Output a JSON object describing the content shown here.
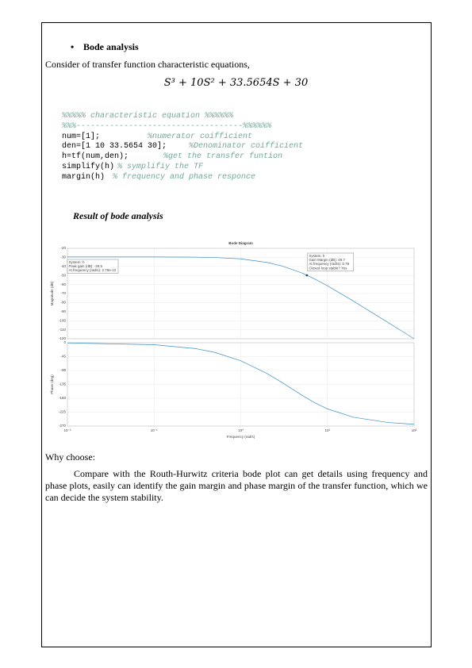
{
  "bullet_heading": "Bode analysis",
  "intro": "Consider of transfer function characteristic equations,",
  "equation": "S³ + 10S² + 33.5654S + 30",
  "code": [
    {
      "comment": "%%%%% characteristic equation %%%%%%"
    },
    {
      "comment": "%%%-----------------------------------%%%%%%"
    },
    {
      "code": "num=[1];",
      "comment": "%numerator coifficient"
    },
    {
      "code": "den=[1 10 33.5654 30];",
      "comment": "%Denominator coifficient"
    },
    {
      "code": "h=tf(num,den);",
      "comment": "%get the transfer funtion"
    },
    {
      "code": "simplify(h)",
      "comment": "% symplifiy the TF"
    },
    {
      "code": "margin(h)",
      "comment": "% frequency and phase responce"
    }
  ],
  "result_heading": "Result of bode analysis",
  "figure": {
    "type": "line",
    "title": "Bode Diagram",
    "x_label": "Frequency  (rad/s)",
    "log_x": true,
    "grid": true,
    "color": "#3c8fc6",
    "x": [
      0.01,
      0.1,
      0.3,
      0.5,
      1,
      2,
      3,
      5,
      7,
      10,
      20,
      50,
      100
    ],
    "xlim": [
      0.01,
      100
    ],
    "xticks": [
      {
        "value": 0.01,
        "label": "10⁻²"
      },
      {
        "value": 0.1,
        "label": "10⁻¹"
      },
      {
        "value": 1,
        "label": "10⁰"
      },
      {
        "value": 10,
        "label": "10¹"
      },
      {
        "value": 100,
        "label": "10²"
      }
    ],
    "magnitude": {
      "y_label": "Magnitude (dB)",
      "values": [
        -29.54,
        -29.57,
        -29.77,
        -30.14,
        -31.65,
        -35.56,
        -39.56,
        -47.01,
        -53.49,
        -61.41,
        -78.42,
        -101.99,
        -120.01
      ],
      "ylim": [
        -120,
        -20
      ],
      "yticks": [
        -20,
        -30,
        -40,
        -50,
        -60,
        -70,
        -80,
        -90,
        -100,
        -110,
        -120
      ]
    },
    "phase": {
      "y_label": "Phase (deg)",
      "values": [
        -0.64,
        -6.4,
        -19.0,
        -31.2,
        -58.4,
        -99.6,
        -129.1,
        -169.0,
        -193.2,
        -214.4,
        -241.6,
        -258.6,
        -264.3
      ],
      "ylim": [
        -270,
        0
      ],
      "yticks": [
        0,
        -45,
        -90,
        -135,
        -180,
        -225,
        -270
      ]
    },
    "datatips": [
      {
        "lines": [
          "System: h",
          "Peak gain (dB): -29.5",
          "At frequency (rad/s): 2.78e-12"
        ]
      },
      {
        "lines": [
          "System: h",
          "Gain Margin (dB): 49.7",
          "At frequency (rad/s): 5.79",
          "Closed loop stable? Yes"
        ],
        "frequency": 5.79
      }
    ]
  },
  "why_heading": "Why choose:",
  "paragraph": "Compare with the Routh-Hurwitz criteria bode plot can get details using frequency and phase plots, easily can identify the gain margin and phase margin of the transfer function, which we can decide the system stability."
}
